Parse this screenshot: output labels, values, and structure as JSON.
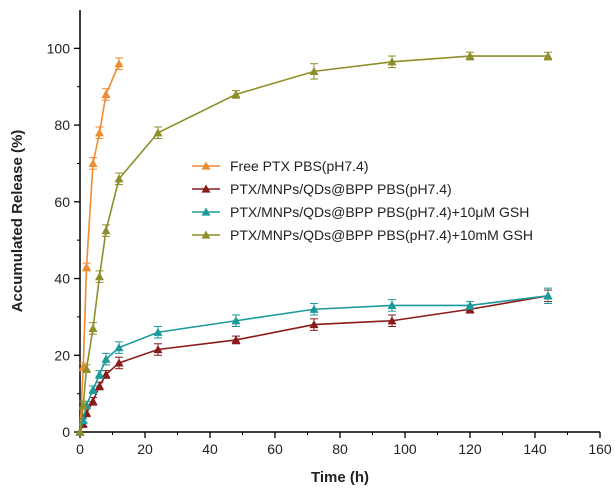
{
  "chart_data": {
    "type": "line",
    "title": "",
    "xlabel": "Time (h)",
    "ylabel": "Accumulated Release (%)",
    "xlim": [
      0,
      160
    ],
    "ylim": [
      0,
      110
    ],
    "x_ticks": [
      0,
      20,
      40,
      60,
      80,
      100,
      120,
      140,
      160
    ],
    "y_ticks": [
      0,
      20,
      40,
      60,
      80,
      100
    ],
    "grid": false,
    "legend_position": "center-right",
    "series": [
      {
        "name": "Free PTX PBS(pH7.4)",
        "color": "#ED8C30",
        "x": [
          0,
          1,
          2,
          4,
          6,
          8,
          12
        ],
        "y": [
          0,
          17,
          43,
          70,
          78,
          88,
          96
        ],
        "err": [
          0,
          1,
          1,
          1.5,
          1.5,
          1.5,
          1.5
        ]
      },
      {
        "name": "PTX/MNPs/QDs@BPP PBS(pH7.4)",
        "color": "#8B1A1A",
        "x": [
          0,
          1,
          2,
          4,
          6,
          8,
          12,
          24,
          48,
          72,
          96,
          120,
          144
        ],
        "y": [
          0,
          2,
          5,
          8,
          12,
          15,
          18,
          21.5,
          24,
          28,
          29,
          32,
          35.5
        ],
        "err": [
          0,
          0.5,
          1,
          1,
          1,
          1,
          1.5,
          1.5,
          1,
          1.5,
          1.5,
          1,
          1.5
        ]
      },
      {
        "name": "PTX/MNPs/QDs@BPP PBS(pH7.4)+10μM GSH",
        "color": "#1C9A9A",
        "x": [
          0,
          1,
          2,
          4,
          6,
          8,
          12,
          24,
          48,
          72,
          96,
          120,
          144
        ],
        "y": [
          0,
          3,
          7,
          11,
          15,
          19,
          22,
          26,
          29,
          32,
          33,
          33,
          35.5
        ],
        "err": [
          0,
          0.5,
          1,
          1,
          1,
          1.5,
          1.5,
          1.5,
          1.5,
          1.5,
          1.5,
          1,
          2
        ]
      },
      {
        "name": "PTX/MNPs/QDs@BPP PBS(pH7.4)+10mM GSH",
        "color": "#8E8E2A",
        "x": [
          0,
          1,
          2,
          4,
          6,
          8,
          12,
          24,
          48,
          72,
          96,
          120,
          144
        ],
        "y": [
          0,
          7,
          16.5,
          27,
          40.5,
          52.5,
          66,
          78,
          88,
          94,
          96.5,
          98,
          98
        ],
        "err": [
          0,
          1,
          1,
          1.5,
          1.5,
          1.5,
          1.5,
          1.5,
          1,
          2,
          1.5,
          1,
          1
        ]
      }
    ]
  }
}
